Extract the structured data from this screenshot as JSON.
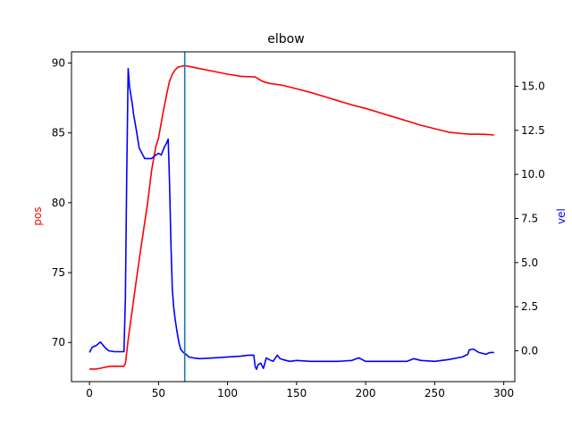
{
  "chart_data": {
    "type": "line",
    "title": "elbow",
    "xlabel": "",
    "ylabel_left": "pos",
    "ylabel_right": "vel",
    "xlim": [
      -13,
      308
    ],
    "ylim_left": [
      67.2,
      90.8
    ],
    "ylim_right": [
      -1.75,
      16.95
    ],
    "x_ticks": [
      0,
      50,
      100,
      150,
      200,
      250,
      300
    ],
    "y_ticks_left": [
      70,
      75,
      80,
      85,
      90
    ],
    "y_ticks_right": [
      0.0,
      2.5,
      5.0,
      7.5,
      10.0,
      12.5,
      15.0
    ],
    "y_tick_labels_right": [
      "0.0",
      "2.5",
      "5.0",
      "7.5",
      "10.0",
      "12.5",
      "15.0"
    ],
    "vline_x": 69,
    "grid": false,
    "legend": "none",
    "series": [
      {
        "axis": "left",
        "color": "#ff0000",
        "x": [
          0,
          5,
          10,
          15,
          20,
          25,
          26,
          27,
          28,
          30,
          33,
          36,
          39,
          42,
          45,
          48,
          50,
          53,
          56,
          58,
          60,
          62,
          64,
          66,
          68,
          70,
          75,
          80,
          90,
          100,
          110,
          120,
          125,
          130,
          140,
          150,
          160,
          170,
          180,
          190,
          200,
          210,
          220,
          230,
          240,
          250,
          260,
          270,
          276,
          285,
          293
        ],
        "y": [
          68.1,
          68.1,
          68.2,
          68.3,
          68.3,
          68.3,
          68.5,
          69.3,
          70.2,
          71.6,
          73.8,
          75.9,
          77.9,
          79.9,
          82.3,
          84.0,
          84.6,
          86.3,
          87.8,
          88.7,
          89.2,
          89.5,
          89.7,
          89.75,
          89.8,
          89.8,
          89.7,
          89.6,
          89.4,
          89.2,
          89.05,
          89.0,
          88.7,
          88.55,
          88.4,
          88.15,
          87.9,
          87.6,
          87.3,
          87.0,
          86.75,
          86.45,
          86.15,
          85.85,
          85.55,
          85.3,
          85.05,
          84.95,
          84.9,
          84.9,
          84.85
        ]
      },
      {
        "axis": "right",
        "color": "#0000ff",
        "x": [
          0,
          2,
          5,
          8,
          11,
          14,
          18,
          22,
          25,
          26,
          27,
          28,
          29,
          30,
          31,
          32,
          34,
          36,
          38,
          40,
          42,
          45,
          48,
          50,
          52,
          54,
          56,
          57,
          58,
          59,
          60,
          61,
          62,
          63,
          64,
          65,
          66,
          67,
          68,
          69,
          70,
          72,
          75,
          80,
          90,
          100,
          110,
          115,
          119,
          120,
          121,
          122,
          124,
          126,
          128,
          130,
          133,
          136,
          138,
          140,
          145,
          150,
          160,
          170,
          180,
          190,
          195,
          200,
          210,
          220,
          230,
          235,
          240,
          250,
          260,
          270,
          274,
          275,
          278,
          282,
          287,
          290,
          293
        ],
        "y": [
          -0.1,
          0.2,
          0.3,
          0.5,
          0.2,
          0.0,
          -0.05,
          -0.05,
          -0.05,
          3.0,
          10.0,
          16.0,
          15.0,
          14.5,
          14.0,
          13.4,
          12.5,
          11.5,
          11.2,
          10.9,
          10.9,
          10.9,
          11.1,
          11.2,
          11.1,
          11.5,
          11.8,
          12.0,
          9.5,
          6.0,
          3.5,
          2.5,
          1.8,
          1.3,
          0.8,
          0.4,
          0.1,
          0.0,
          -0.1,
          -0.15,
          -0.2,
          -0.35,
          -0.4,
          -0.45,
          -0.4,
          -0.35,
          -0.3,
          -0.25,
          -0.25,
          -0.9,
          -1.05,
          -0.8,
          -0.7,
          -1.0,
          -0.4,
          -0.5,
          -0.6,
          -0.25,
          -0.45,
          -0.5,
          -0.6,
          -0.55,
          -0.6,
          -0.6,
          -0.6,
          -0.55,
          -0.4,
          -0.6,
          -0.6,
          -0.6,
          -0.6,
          -0.45,
          -0.55,
          -0.6,
          -0.5,
          -0.35,
          -0.2,
          0.05,
          0.1,
          -0.1,
          -0.2,
          -0.1,
          -0.1
        ]
      }
    ]
  }
}
